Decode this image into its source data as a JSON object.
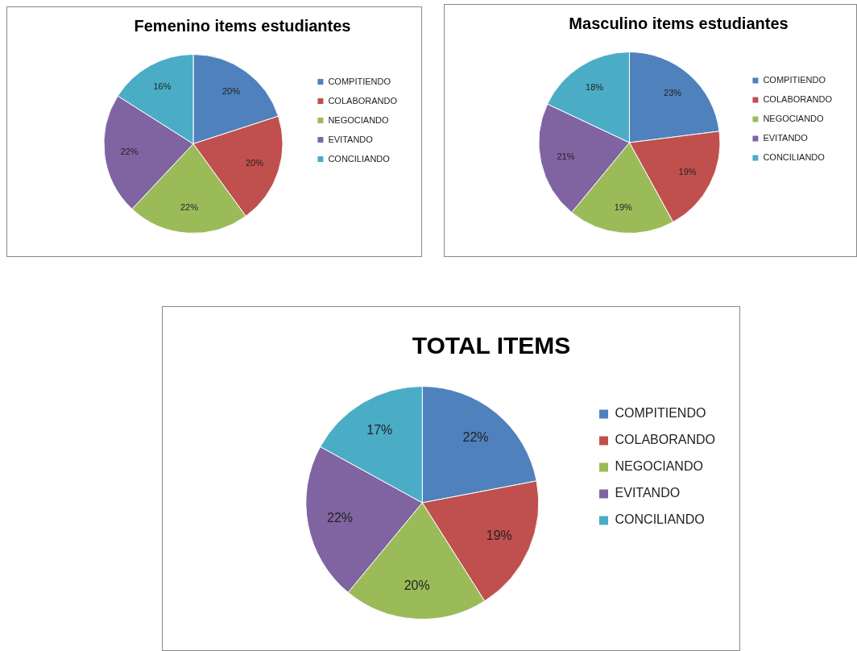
{
  "chart_data": [
    {
      "type": "pie",
      "title": "Femenino items estudiantes",
      "categories": [
        "COMPITIENDO",
        "COLABORANDO",
        "NEGOCIANDO",
        "EVITANDO",
        "CONCILIANDO"
      ],
      "values": [
        20,
        20,
        22,
        22,
        16
      ],
      "value_labels": [
        "20%",
        "20%",
        "22%",
        "22%",
        "16%"
      ],
      "colors": [
        "#4f81bd",
        "#c0504d",
        "#9bbb59",
        "#8064a2",
        "#4bacc6"
      ],
      "legend": "right"
    },
    {
      "type": "pie",
      "title": "Masculino items estudiantes",
      "categories": [
        "COMPITIENDO",
        "COLABORANDO",
        "NEGOCIANDO",
        "EVITANDO",
        "CONCILIANDO"
      ],
      "values": [
        23,
        19,
        19,
        21,
        18
      ],
      "value_labels": [
        "23%",
        "19%",
        "19%",
        "21%",
        "18%"
      ],
      "colors": [
        "#4f81bd",
        "#c0504d",
        "#9bbb59",
        "#8064a2",
        "#4bacc6"
      ],
      "legend": "right"
    },
    {
      "type": "pie",
      "title": "TOTAL ITEMS",
      "categories": [
        "COMPITIENDO",
        "COLABORANDO",
        "NEGOCIANDO",
        "EVITANDO",
        "CONCILIANDO"
      ],
      "values": [
        22,
        19,
        20,
        22,
        17
      ],
      "value_labels": [
        "22%",
        "19%",
        "20%",
        "22%",
        "17%"
      ],
      "colors": [
        "#4f81bd",
        "#c0504d",
        "#9bbb59",
        "#8064a2",
        "#4bacc6"
      ],
      "legend": "right"
    }
  ]
}
